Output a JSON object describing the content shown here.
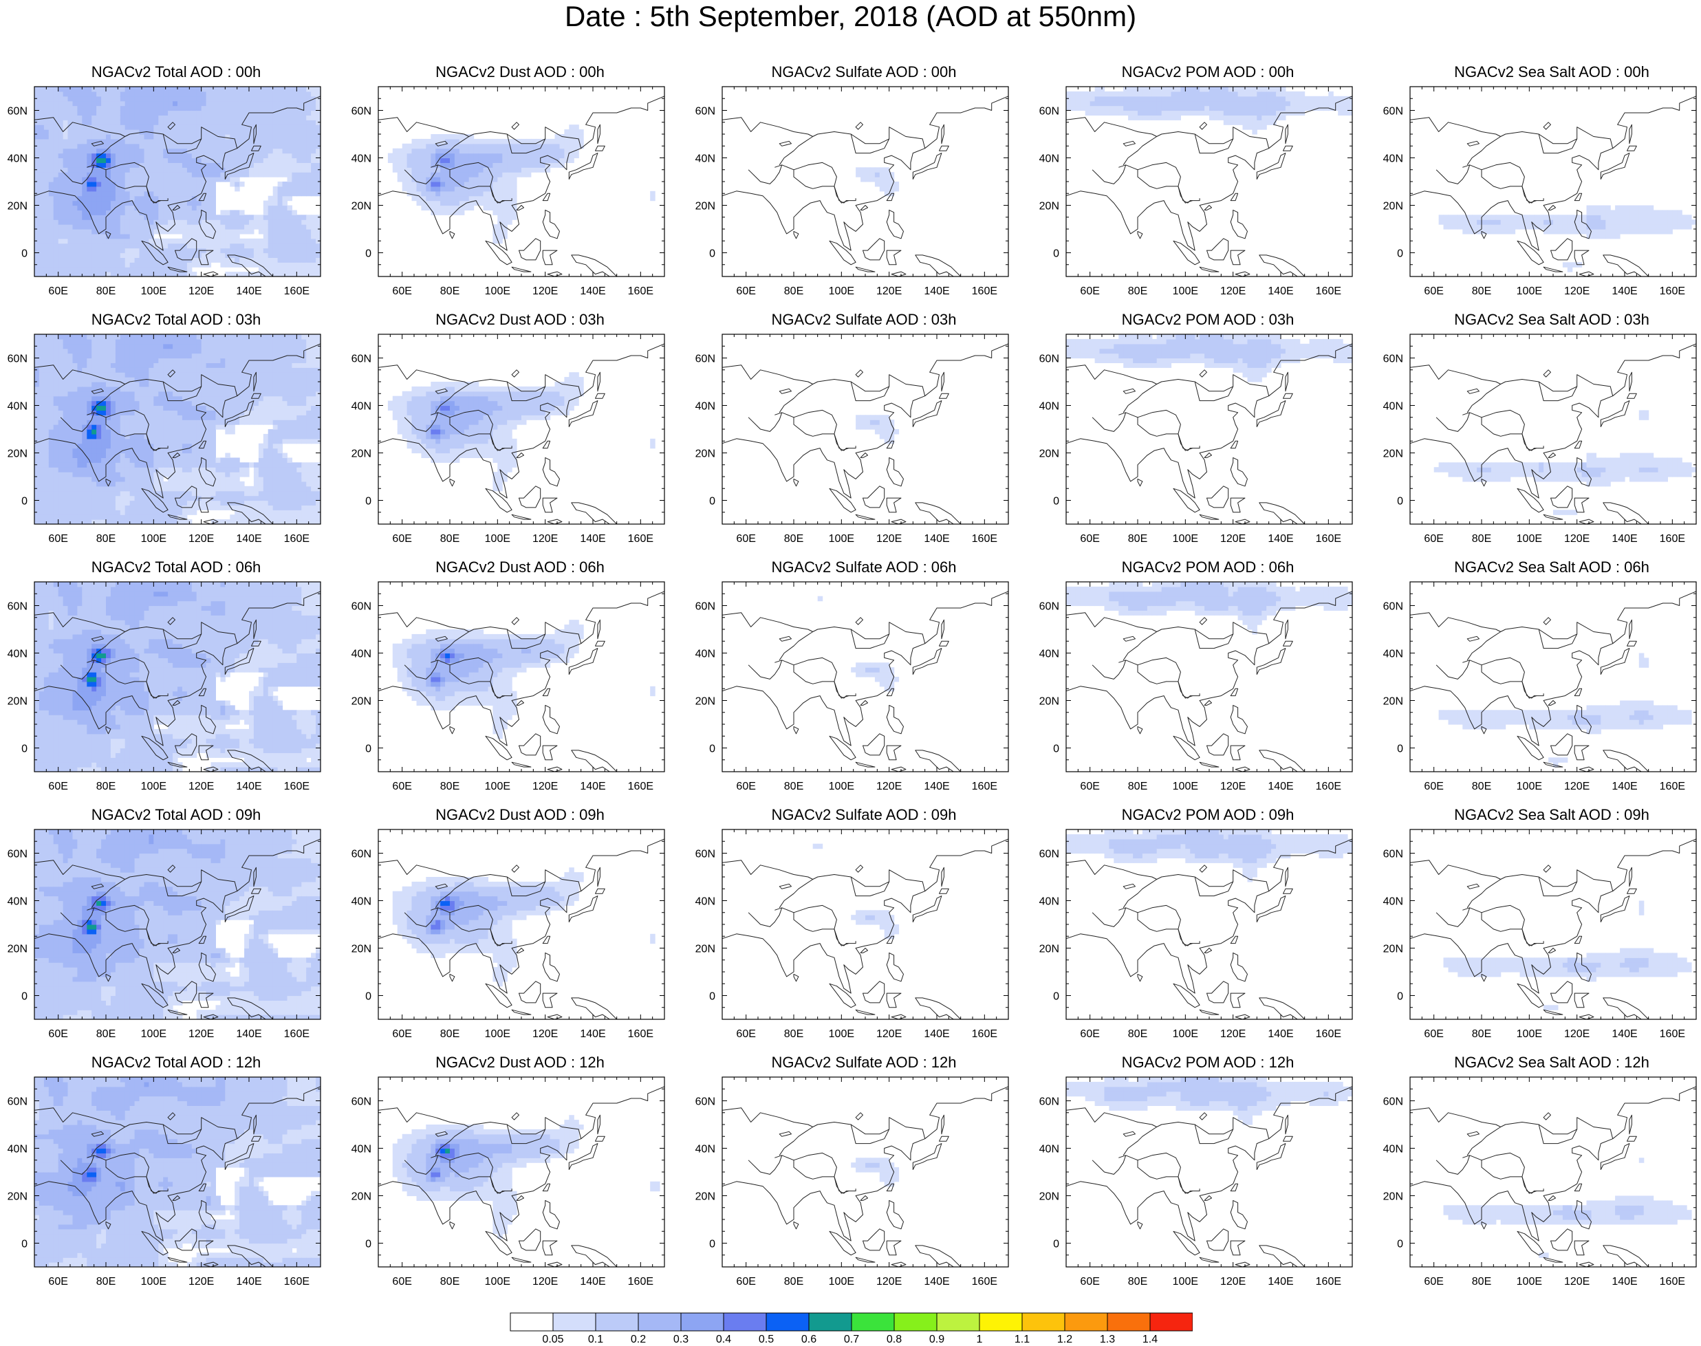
{
  "title": "Date : 5th September, 2018 (AOD at 550nm)",
  "colors": {
    "land_outline": "#222222",
    "frame": "#000000",
    "palette": [
      "#ffffff",
      "#d4defb",
      "#bccbf8",
      "#a5b8f6",
      "#8da5f3",
      "#6a7df0",
      "#0b61f5",
      "#129a8f",
      "#3be33b",
      "#86f01b",
      "#bdf23f",
      "#fef304",
      "#fdc30c",
      "#fc9a0e",
      "#f9700c",
      "#f6250f"
    ]
  },
  "colorbar": {
    "labels": [
      "0.05",
      "0.1",
      "0.2",
      "0.3",
      "0.4",
      "0.5",
      "0.6",
      "0.7",
      "0.8",
      "0.9",
      "1",
      "1.1",
      "1.2",
      "1.3",
      "1.4"
    ]
  },
  "axes": {
    "lon_labels": [
      "60E",
      "80E",
      "100E",
      "120E",
      "140E",
      "160E"
    ],
    "lat_labels": [
      "60N",
      "40N",
      "20N",
      "0"
    ],
    "lon_range": [
      50,
      170
    ],
    "lat_range": [
      -10,
      70
    ]
  },
  "columns": [
    "Total",
    "Dust",
    "Sulfate",
    "POM",
    "Sea Salt"
  ],
  "rows": [
    "00h",
    "03h",
    "06h",
    "09h",
    "12h"
  ],
  "panel_titles": [
    [
      "NGACv2 Total AOD : 00h",
      "NGACv2 Dust AOD : 00h",
      "NGACv2 Sulfate AOD : 00h",
      "NGACv2 POM AOD : 00h",
      "NGACv2 Sea Salt AOD : 00h"
    ],
    [
      "NGACv2 Total AOD : 03h",
      "NGACv2 Dust AOD : 03h",
      "NGACv2 Sulfate AOD : 03h",
      "NGACv2 POM AOD : 03h",
      "NGACv2 Sea Salt AOD : 03h"
    ],
    [
      "NGACv2 Total AOD : 06h",
      "NGACv2 Dust AOD : 06h",
      "NGACv2 Sulfate AOD : 06h",
      "NGACv2 POM AOD : 06h",
      "NGACv2 Sea Salt AOD : 06h"
    ],
    [
      "NGACv2 Total AOD : 09h",
      "NGACv2 Dust AOD : 09h",
      "NGACv2 Sulfate AOD : 09h",
      "NGACv2 POM AOD : 09h",
      "NGACv2 Sea Salt  AOD : 09h"
    ],
    [
      "NGACv2 Total AOD  : 12h",
      "NGACv2 Dust AOD : 12h",
      "NGACv2 Sulfate AOD : 12h",
      "NGACv2 POM  AOD : 12h",
      "NGACv2 Sea Salt  AOD : 12h"
    ]
  ]
}
